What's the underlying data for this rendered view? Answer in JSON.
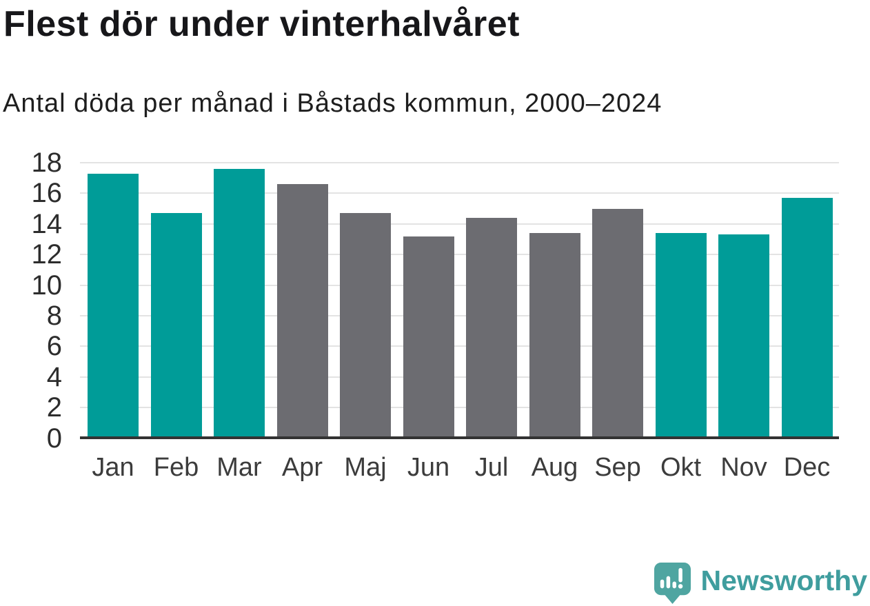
{
  "header": {
    "title": "Flest dör under vinterhalvåret",
    "subtitle": "Antal döda per månad i Båstads kommun, 2000–2024"
  },
  "branding": {
    "logo_text": "Newsworthy",
    "icon": "newsworthy-bubble-barchart-icon",
    "icon_color": "#4fa5a1",
    "text_color": "#3f9d9e"
  },
  "chart_data": {
    "type": "bar",
    "title": "Flest dör under vinterhalvåret",
    "subtitle": "Antal döda per månad i Båstads kommun, 2000–2024",
    "categories": [
      "Jan",
      "Feb",
      "Mar",
      "Apr",
      "Maj",
      "Jun",
      "Jul",
      "Aug",
      "Sep",
      "Okt",
      "Nov",
      "Dec"
    ],
    "values": [
      17.3,
      14.7,
      17.6,
      16.6,
      14.7,
      13.2,
      14.4,
      13.4,
      15.0,
      13.4,
      13.3,
      15.7
    ],
    "bar_colors": [
      "#009c98",
      "#009c98",
      "#009c98",
      "#6c6c71",
      "#6c6c71",
      "#6c6c71",
      "#6c6c71",
      "#6c6c71",
      "#6c6c71",
      "#009c98",
      "#009c98",
      "#009c98"
    ],
    "highlight_color": "#009c98",
    "base_color": "#6c6c71",
    "highlight_meaning": "winter half-year months (Okt–Mar)",
    "xlabel": "",
    "ylabel": "",
    "ylim": [
      0,
      18
    ],
    "yticks": [
      0,
      2,
      4,
      6,
      8,
      10,
      12,
      14,
      16,
      18
    ],
    "grid": "horizontal",
    "legend": "none",
    "gridline_color": "#e3e3e3",
    "axis_color": "#333333",
    "ytick_text_color": "#2d2d2d",
    "xtick_text_color": "#3c3c3c"
  }
}
